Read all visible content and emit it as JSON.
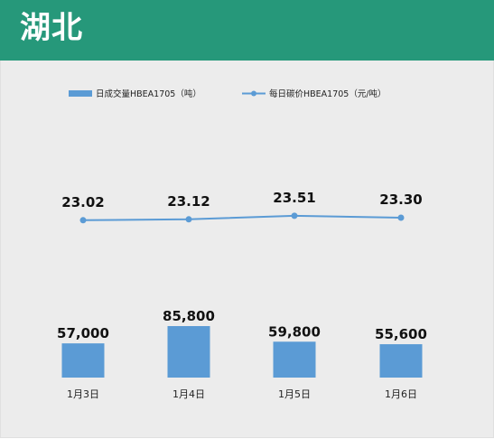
{
  "header": {
    "title": "湖北"
  },
  "colors": {
    "header_bg": "#26987a",
    "panel_bg": "#ececec",
    "series": "#5b9bd5"
  },
  "chart_data": {
    "type": "bar+line",
    "categories": [
      "1月3日",
      "1月4日",
      "1月5日",
      "1月6日"
    ],
    "series": [
      {
        "name": "日成交量HBEA1705（吨）",
        "type": "bar",
        "values": [
          57000,
          85800,
          59800,
          55600
        ],
        "labels": [
          "57,000",
          "85,800",
          "59,800",
          "55,600"
        ]
      },
      {
        "name": "每日碳价HBEA1705（元/吨）",
        "type": "line",
        "values": [
          23.02,
          23.12,
          23.51,
          23.3
        ],
        "labels": [
          "23.02",
          "23.12",
          "23.51",
          "23.30"
        ]
      }
    ],
    "legend_position": "top",
    "grid": false
  }
}
